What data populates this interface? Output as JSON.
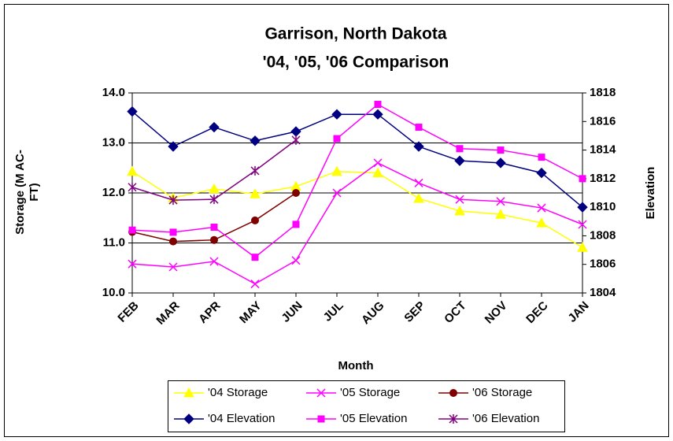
{
  "chart_data": {
    "type": "line",
    "title": "Garrison, North Dakota",
    "subtitle": "'04, '05, '06 Comparison",
    "xlabel": "Month",
    "ylabel": "Storage (M AC-FT)",
    "y2label": "Elevation",
    "categories": [
      "FEB",
      "MAR",
      "APR",
      "MAY",
      "JUN",
      "JUL",
      "AUG",
      "SEP",
      "OCT",
      "NOV",
      "DEC",
      "JAN"
    ],
    "ylim": [
      10,
      14
    ],
    "yticks": [
      {
        "value": 10,
        "label": "10.0"
      },
      {
        "value": 11,
        "label": "11.0"
      },
      {
        "value": 12,
        "label": "12.0"
      },
      {
        "value": 13,
        "label": "13.0"
      },
      {
        "value": 14,
        "label": "14.0"
      }
    ],
    "y2lim": [
      1804,
      1818
    ],
    "y2ticks": [
      1804,
      1806,
      1808,
      1810,
      1812,
      1814,
      1816,
      1818
    ],
    "grid": true,
    "legend": "bottom",
    "series": [
      {
        "name": "'04 Storage",
        "color": "#ffff00",
        "marker": "triangle",
        "values": [
          12.43,
          11.9,
          12.08,
          11.98,
          12.13,
          12.43,
          12.4,
          11.89,
          11.64,
          11.57,
          11.4,
          10.91
        ]
      },
      {
        "name": "'05 Storage",
        "color": "#ff00ff",
        "marker": "x",
        "values": [
          10.58,
          10.52,
          10.63,
          10.18,
          10.65,
          12.0,
          12.6,
          12.2,
          11.87,
          11.83,
          11.7,
          11.37
        ]
      },
      {
        "name": "'06 Storage",
        "color": "#800000",
        "marker": "circle",
        "values": [
          11.22,
          11.03,
          11.06,
          11.45,
          12.0,
          null,
          null,
          null,
          null,
          null,
          null,
          null
        ]
      },
      {
        "name": "'04 Elevation",
        "color": "#000080",
        "marker": "diamond",
        "axis": "y2",
        "values": [
          1816.7,
          1814.25,
          1815.6,
          1814.65,
          1815.3,
          1816.5,
          1816.5,
          1814.25,
          1813.25,
          1813.1,
          1812.4,
          1810.0
        ]
      },
      {
        "name": "'05 Elevation",
        "color": "#ff00ff",
        "marker": "square",
        "axis": "y2",
        "values": [
          1808.4,
          1808.25,
          1808.6,
          1806.5,
          1808.8,
          1814.8,
          1817.2,
          1815.6,
          1814.1,
          1814.0,
          1813.5,
          1812.0
        ]
      },
      {
        "name": "'06 Elevation",
        "color": "#800080",
        "marker": "star",
        "axis": "y2",
        "values": [
          1811.4,
          1810.5,
          1810.55,
          1812.55,
          1814.7,
          null,
          null,
          null,
          null,
          null,
          null,
          null
        ]
      }
    ]
  }
}
